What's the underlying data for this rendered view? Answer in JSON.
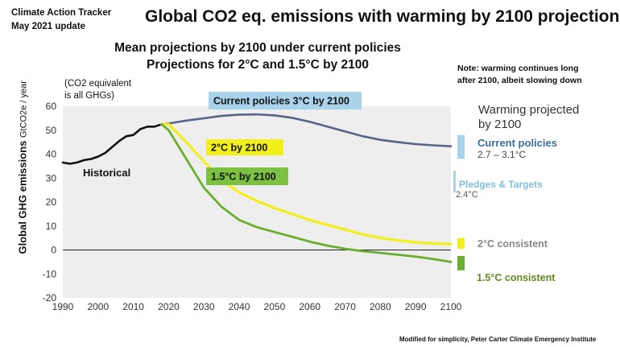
{
  "header": {
    "source": "Climate Action Tracker",
    "date": "May 2021 update",
    "title": "Global CO2 eq. emissions with warming by 2100 projections",
    "subtitle_line1": "Mean projections by 2100 under current policies",
    "subtitle_line2": "Projections for 2°C and 1.5°C by 2100",
    "note_line1": "Note: warming continues long",
    "note_line2": "after 2100, albeit slowing down",
    "gas_note_line1": "(CO2 equivalent",
    "gas_note_line2": "is all GHGs)",
    "footnote": "Modified for simplicity, Peter Carter Climate Emergency Institute"
  },
  "right_panel": {
    "title_line1": "Warming projected",
    "title_line2": "by 2100",
    "current_policies": "Current policies",
    "current_policies_range": "2.7 – 3.1°C",
    "pledges": "Pledges & Targets",
    "pledges_value": "2.4°C",
    "two_c": "2°C consistent",
    "one_five_c": "1.5°C consistent"
  },
  "colors": {
    "historical": "#111111",
    "current": "#5a6488",
    "two_c": "#f2ef1a",
    "one_five_c": "#6aae2e",
    "current_box": "#a9d3ea",
    "two_c_box": "#f2ef1a",
    "one_five_c_box": "#7cc142",
    "plot_bg": "#eeeeee",
    "pledges_bar": "#a9d3ea"
  },
  "chart_data": {
    "type": "line",
    "title": "Global CO2 eq. emissions with warming by 2100 projections",
    "ylabel": "Global GHG emissions",
    "ylabel_unit": "GtCO2e / year",
    "xlabel": "",
    "xlim": [
      1990,
      2100
    ],
    "ylim": [
      -20,
      60
    ],
    "xticks": [
      "1990",
      "2000",
      "2010",
      "2020",
      "2030",
      "2040",
      "2050",
      "2060",
      "2070",
      "2080",
      "2090",
      "2100"
    ],
    "yticks": [
      "-20",
      "-10",
      "0",
      "10",
      "20",
      "30",
      "40",
      "50",
      "60"
    ],
    "series": [
      {
        "name": "Historical",
        "key": "historical",
        "x": [
          1990,
          1992,
          1994,
          1996,
          1998,
          2000,
          2002,
          2004,
          2006,
          2008,
          2010,
          2012,
          2014,
          2016,
          2018
        ],
        "y": [
          36.5,
          36,
          36.5,
          37.5,
          38,
          39,
          40.5,
          43,
          45.5,
          47.5,
          48,
          50.5,
          51.5,
          51.5,
          52.5
        ]
      },
      {
        "name": "Current policies 3°C by 2100",
        "key": "current",
        "x": [
          2018,
          2020,
          2025,
          2030,
          2035,
          2040,
          2045,
          2050,
          2055,
          2060,
          2065,
          2070,
          2075,
          2080,
          2085,
          2090,
          2095,
          2100
        ],
        "y": [
          52.5,
          52.8,
          54,
          55,
          56,
          56.5,
          56.6,
          56.2,
          55.2,
          53.5,
          51.5,
          49.5,
          47.5,
          46,
          45,
          44.2,
          43.7,
          43.3
        ]
      },
      {
        "name": "2°C by 2100",
        "key": "two_c",
        "x": [
          2018,
          2020,
          2025,
          2030,
          2035,
          2040,
          2045,
          2050,
          2055,
          2060,
          2065,
          2070,
          2075,
          2080,
          2085,
          2090,
          2095,
          2100
        ],
        "y": [
          52.5,
          52.5,
          45,
          37,
          29,
          24,
          20.5,
          17.5,
          15,
          12.5,
          10.5,
          8.5,
          6.5,
          5,
          4,
          3.2,
          2.7,
          2.5
        ]
      },
      {
        "name": "1.5°C by 2100",
        "key": "one_five_c",
        "x": [
          2018,
          2020,
          2025,
          2030,
          2035,
          2040,
          2045,
          2050,
          2055,
          2060,
          2065,
          2070,
          2075,
          2080,
          2085,
          2090,
          2095,
          2100
        ],
        "y": [
          52.5,
          50,
          38,
          26,
          18,
          12.5,
          9.5,
          7.5,
          5.5,
          3.5,
          1.8,
          0.5,
          -0.5,
          -1.2,
          -2,
          -2.8,
          -3.8,
          -5
        ]
      }
    ],
    "annotations": [
      {
        "text": "Current policies 3°C by 2100",
        "key": "current",
        "box_color": "#a9d3ea"
      },
      {
        "text": "2°C by 2100",
        "key": "two_c",
        "box_color": "#f2ef1a"
      },
      {
        "text": "1.5°C by 2100",
        "key": "one_five_c",
        "box_color": "#7cc142"
      },
      {
        "text": "Historical",
        "key": "historical"
      }
    ],
    "end_ranges": [
      {
        "key": "current",
        "y": [
          38,
          48
        ],
        "color": "#a9d3ea"
      },
      {
        "key": "two_c",
        "y": [
          0.5,
          5
        ],
        "color": "#f2ef1a"
      },
      {
        "key": "one_five_c",
        "y": [
          -8.5,
          -2.5
        ],
        "color": "#6aae2e"
      }
    ],
    "grid": false
  }
}
